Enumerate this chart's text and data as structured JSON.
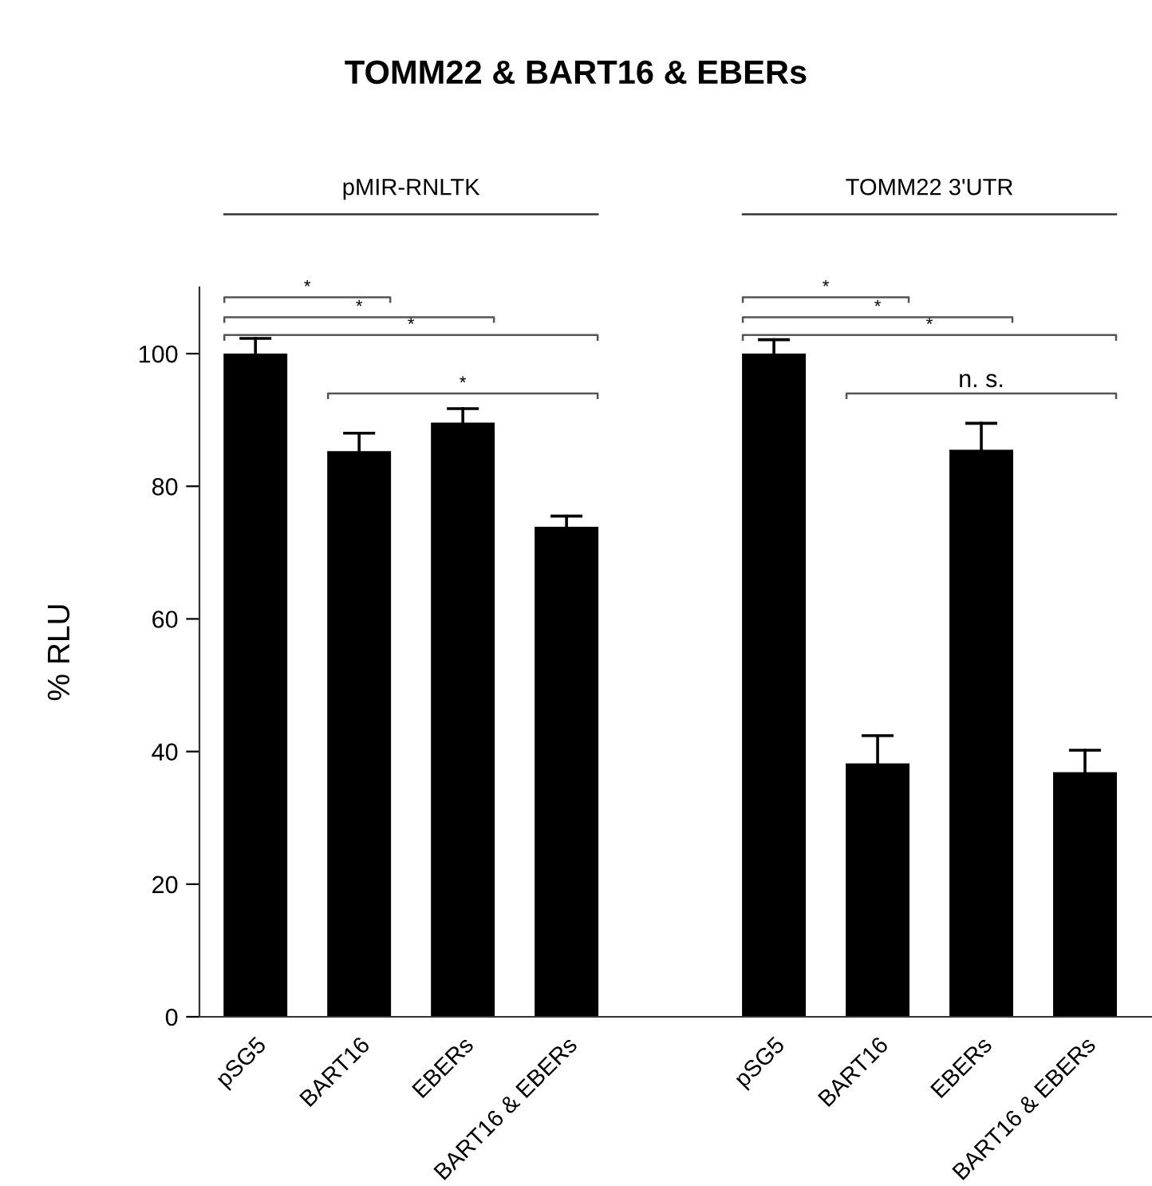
{
  "chart_data": {
    "type": "bar",
    "title": "TOMM22 & BART16 & EBERs",
    "ylabel": "% RLU",
    "categories": [
      "pSG5",
      "BART16",
      "EBERs",
      "BART16 & EBERs",
      null,
      "pSG5",
      "BART16",
      "EBERs",
      "BART16 & EBERs"
    ],
    "values": [
      100,
      85.3,
      89.6,
      73.9,
      null,
      100,
      38.2,
      85.5,
      36.9
    ],
    "color": "#000000",
    "errors": [
      [
        100,
        102.3
      ],
      [
        85.3,
        88.0
      ],
      [
        89.6,
        91.7
      ],
      [
        73.9,
        75.5
      ],
      null,
      [
        100,
        102.1
      ],
      [
        38.2,
        42.4
      ],
      [
        85.5,
        89.5
      ],
      [
        36.9,
        40.2
      ]
    ],
    "ylim": [
      0,
      110
    ],
    "yticks": [
      0,
      20,
      40,
      60,
      80,
      100
    ],
    "grid": false,
    "annotations": [
      "pMIR-RNLTK",
      "TOMM22 3'UTR",
      "*",
      "*",
      "*",
      "*",
      "*",
      "*",
      "*",
      "n. s."
    ]
  }
}
